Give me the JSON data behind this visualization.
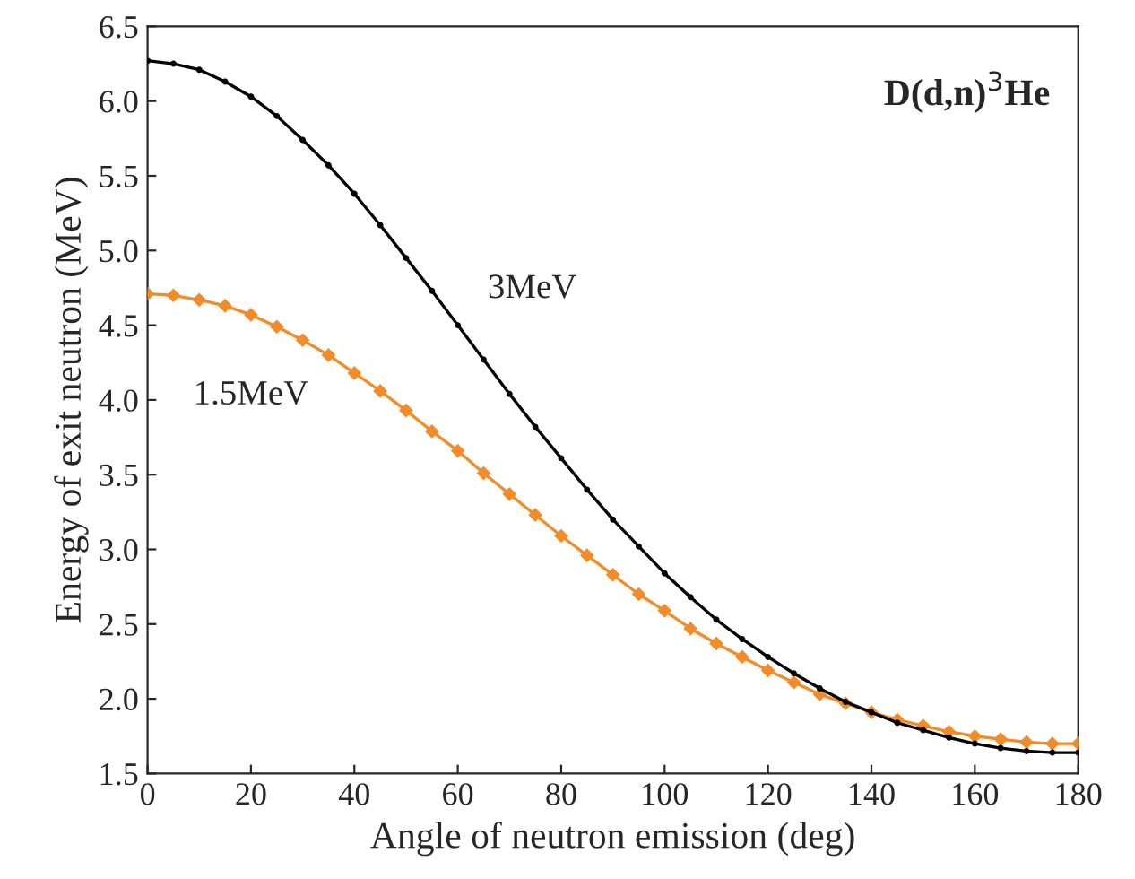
{
  "chart_data": {
    "type": "line",
    "title": "D(d,n)$^{3}$He",
    "xlabel": "Angle of neutron emission (deg)",
    "ylabel": "Energy of exit neutron (MeV)",
    "x": [
      0,
      5,
      10,
      15,
      20,
      25,
      30,
      35,
      40,
      45,
      50,
      55,
      60,
      65,
      70,
      75,
      80,
      85,
      90,
      95,
      100,
      105,
      110,
      115,
      120,
      125,
      130,
      135,
      140,
      145,
      150,
      155,
      160,
      165,
      170,
      175,
      180
    ],
    "series": [
      {
        "name": "3MeV",
        "color": "#000000",
        "marker": "circle",
        "values": [
          6.27,
          6.25,
          6.21,
          6.13,
          6.03,
          5.9,
          5.74,
          5.57,
          5.38,
          5.17,
          4.95,
          4.73,
          4.5,
          4.27,
          4.04,
          3.82,
          3.61,
          3.4,
          3.2,
          3.02,
          2.84,
          2.68,
          2.53,
          2.4,
          2.28,
          2.17,
          2.07,
          1.98,
          1.91,
          1.84,
          1.79,
          1.74,
          1.7,
          1.67,
          1.65,
          1.64,
          1.64
        ]
      },
      {
        "name": "1.5MeV",
        "color": "#f28c28",
        "marker": "diamond",
        "values": [
          4.71,
          4.7,
          4.67,
          4.63,
          4.57,
          4.49,
          4.4,
          4.3,
          4.18,
          4.06,
          3.93,
          3.79,
          3.66,
          3.51,
          3.37,
          3.23,
          3.09,
          2.96,
          2.83,
          2.7,
          2.59,
          2.47,
          2.37,
          2.28,
          2.19,
          2.11,
          2.03,
          1.97,
          1.91,
          1.86,
          1.82,
          1.78,
          1.75,
          1.73,
          1.71,
          1.7,
          1.7
        ]
      }
    ],
    "xlim": [
      0,
      180
    ],
    "xticks": [
      0,
      20,
      40,
      60,
      80,
      100,
      120,
      140,
      160,
      180
    ],
    "ylim": [
      1.5,
      6.5
    ],
    "yticks": [
      1.5,
      {
        "value": 2,
        "label": "2.0"
      },
      2.5,
      {
        "value": 3,
        "label": "3.0"
      },
      3.5,
      {
        "value": 4,
        "label": "4.0"
      },
      4.5,
      {
        "value": 5,
        "label": "5.0"
      },
      5.5,
      {
        "value": 6,
        "label": "6.0"
      },
      6.5
    ],
    "line_style": "solid",
    "grid": false,
    "legend": false
  }
}
